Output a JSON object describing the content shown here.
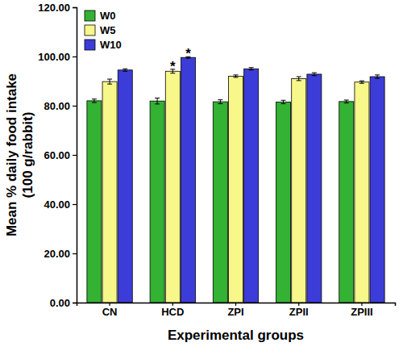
{
  "chart_data": {
    "type": "bar",
    "x_label": "Experimental groups",
    "y_label": [
      "Mean % daily food intake",
      "(100 g/rabbit)"
    ],
    "categories": [
      "CN",
      "HCD",
      "ZPI",
      "ZPII",
      "ZPIII"
    ],
    "series": [
      {
        "name": "W0",
        "color": "#33b233",
        "values": [
          82.0,
          81.9,
          81.6,
          81.5,
          81.7
        ],
        "errors": [
          0.7,
          1.2,
          0.8,
          0.7,
          0.6
        ]
      },
      {
        "name": "W5",
        "color": "#f7f78a",
        "values": [
          89.8,
          94.0,
          92.0,
          91.0,
          89.6
        ],
        "errors": [
          1.0,
          0.8,
          0.5,
          0.8,
          0.5
        ]
      },
      {
        "name": "W10",
        "color": "#3c3cd8",
        "values": [
          94.5,
          99.6,
          95.0,
          92.8,
          91.8
        ],
        "errors": [
          0.5,
          0.3,
          0.5,
          0.6,
          0.7
        ]
      }
    ],
    "ylim": [
      0,
      120
    ],
    "yticks": [
      {
        "value": 0,
        "label": "0.00"
      },
      {
        "value": 20,
        "label": "20.00"
      },
      {
        "value": 40,
        "label": "40.00"
      },
      {
        "value": 60,
        "label": "60.00"
      },
      {
        "value": 80,
        "label": "80.00"
      },
      {
        "value": 100,
        "label": "100.00"
      },
      {
        "value": 120,
        "label": "120.00"
      }
    ],
    "legend": "upper left",
    "annotations": [
      {
        "text": "*",
        "category": "HCD",
        "series": "W5"
      },
      {
        "text": "*",
        "category": "HCD",
        "series": "W10"
      }
    ]
  }
}
